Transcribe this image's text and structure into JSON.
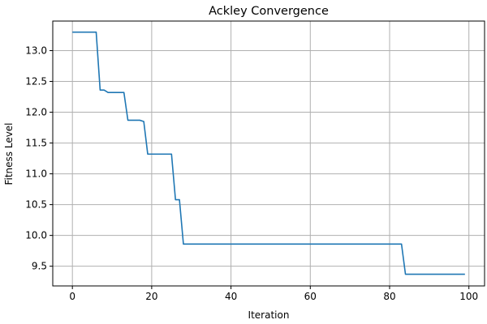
{
  "chart_data": {
    "type": "line",
    "title": "Ackley Convergence",
    "xlabel": "Iteration",
    "ylabel": "Fitness Level",
    "xlim": [
      -4.95,
      103.95
    ],
    "ylim": [
      9.18,
      13.48
    ],
    "grid": true,
    "x_ticks": [
      0,
      20,
      40,
      60,
      80,
      100
    ],
    "y_ticks": [
      9.5,
      10.0,
      10.5,
      11.0,
      11.5,
      12.0,
      12.5,
      13.0
    ],
    "x_tick_labels": [
      "0",
      "20",
      "40",
      "60",
      "80",
      "100"
    ],
    "y_tick_labels": [
      "9.5",
      "10.0",
      "10.5",
      "11.0",
      "11.5",
      "12.0",
      "12.5",
      "13.0"
    ],
    "series": [
      {
        "color": "#1f77b4",
        "x": [
          0,
          6,
          7,
          8,
          9,
          10,
          11,
          12,
          13,
          14,
          15,
          16,
          17,
          18,
          19,
          20,
          21,
          22,
          23,
          24,
          25,
          26,
          27,
          28,
          29,
          83,
          84,
          99
        ],
        "y": [
          13.3,
          13.3,
          12.36,
          12.36,
          12.32,
          12.32,
          12.32,
          12.32,
          12.32,
          11.87,
          11.87,
          11.87,
          11.87,
          11.85,
          11.32,
          11.32,
          11.32,
          11.32,
          11.32,
          11.32,
          11.32,
          10.58,
          10.58,
          9.86,
          9.86,
          9.86,
          9.37,
          9.37
        ]
      }
    ]
  }
}
